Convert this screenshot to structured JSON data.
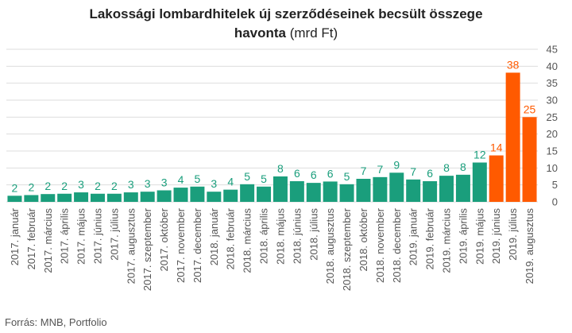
{
  "chart_data": {
    "type": "bar",
    "title_line1": "Lakossági lombardhitelek új szerződéseinek becsült összege",
    "title_line2_bold": "havonta",
    "title_unit": "(mrd Ft)",
    "source": "Forrás: MNB, Portfolio",
    "ylim": [
      0,
      45
    ],
    "yticks": [
      0,
      5,
      10,
      15,
      20,
      25,
      30,
      35,
      40,
      45
    ],
    "grid": true,
    "colors": {
      "normal": "#1a9e7c",
      "highlight": "#ff5a00",
      "grid": "#dddddd",
      "label": "#555555"
    },
    "highlight_from_index": 29,
    "categories": [
      "2017. január",
      "2017. február",
      "2017. március",
      "2017. április",
      "2017. május",
      "2017. június",
      "2017. július",
      "2017. augusztus",
      "2017. szeptember",
      "2017. október",
      "2017. november",
      "2017. december",
      "2018. január",
      "2018. február",
      "2018. március",
      "2018. április",
      "2018. május",
      "2018. június",
      "2018. július",
      "2018. augusztus",
      "2018. szeptember",
      "2018. október",
      "2018. november",
      "2018. december",
      "2019. január",
      "2019. február",
      "2019. március",
      "2019. április",
      "2019. május",
      "2019. június",
      "2019. július",
      "2019. augusztus"
    ],
    "values": [
      1.8,
      2.0,
      2.3,
      2.4,
      2.8,
      2.4,
      2.4,
      2.8,
      3.0,
      3.4,
      4.2,
      4.5,
      3.0,
      3.6,
      5.2,
      4.5,
      7.5,
      6.1,
      5.6,
      6.0,
      5.2,
      6.8,
      7.3,
      8.6,
      6.6,
      6.1,
      7.7,
      8.0,
      11.6,
      13.7,
      38.1,
      25.0
    ],
    "labels": [
      "2",
      "2",
      "2",
      "2",
      "3",
      "2",
      "2",
      "3",
      "3",
      "3",
      "4",
      "5",
      "3",
      "4",
      "5",
      "5",
      "8",
      "6",
      "6",
      "6",
      "5",
      "7",
      "7",
      "9",
      "7",
      "6",
      "8",
      "8",
      "12",
      "14",
      "38",
      "25"
    ]
  }
}
